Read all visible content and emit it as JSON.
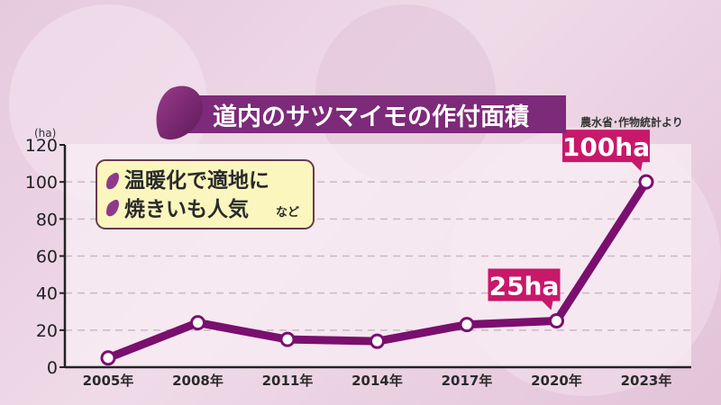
{
  "title": "道内のサツマイモの作付面積",
  "source": "農水省･作物統計より",
  "note": {
    "lines": [
      "温暖化で適地に",
      "焼きいも人気"
    ],
    "suffix": "など"
  },
  "colors": {
    "line": "#7a0f6e",
    "title_bg": "#7d2a7a",
    "callout": "#c8186a",
    "note_bg": "#fbf6be"
  },
  "chart_data": {
    "type": "line",
    "categories": [
      "2005年",
      "2008年",
      "2011年",
      "2014年",
      "2017年",
      "2020年",
      "2023年"
    ],
    "values": [
      5,
      24,
      15,
      14,
      23,
      25,
      100
    ],
    "ylabel": "(ha)",
    "ylim": [
      0,
      120
    ],
    "yticks": [
      "0",
      "20",
      "40",
      "60",
      "80",
      "100",
      "120"
    ],
    "grid": true,
    "annotations": [
      {
        "category": "2020年",
        "label": "25ha"
      },
      {
        "category": "2023年",
        "label": "100ha"
      }
    ]
  }
}
